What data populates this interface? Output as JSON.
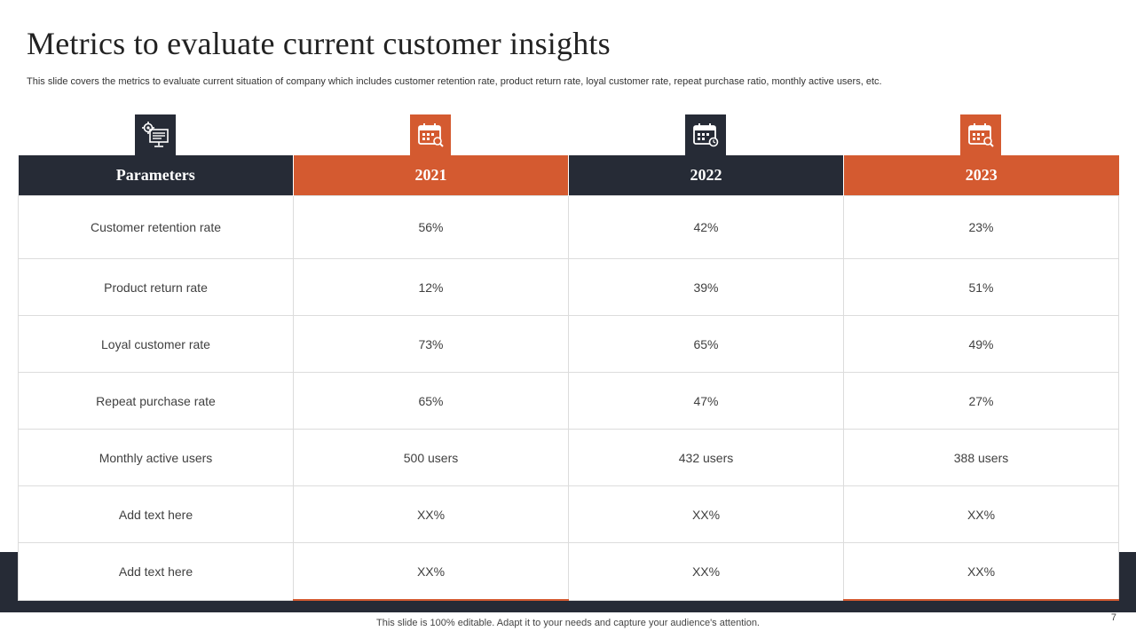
{
  "slide": {
    "title": "Metrics to evaluate current customer insights",
    "subtitle": "This slide covers the metrics to evaluate current situation of company which includes customer retention rate, product return rate, loyal customer rate, repeat purchase ratio, monthly active users, etc.",
    "footer_note": "This slide is 100% editable. Adapt it to your needs and capture your audience's attention.",
    "page_number": "7"
  },
  "colors": {
    "dark": "#262b36",
    "accent": "#d45a30"
  },
  "icons": [
    "monitor-settings-icon",
    "calendar-search-icon",
    "calendar-clock-icon",
    "calendar-search-icon"
  ],
  "table": {
    "headers": [
      "Parameters",
      "2021",
      "2022",
      "2023"
    ],
    "rows": [
      [
        "Customer retention rate",
        "56%",
        "42%",
        "23%"
      ],
      [
        "Product return rate",
        "12%",
        "39%",
        "51%"
      ],
      [
        "Loyal customer rate",
        "73%",
        "65%",
        "49%"
      ],
      [
        "Repeat purchase rate",
        "65%",
        "47%",
        "27%"
      ],
      [
        "Monthly active users",
        "500 users",
        "432 users",
        "388 users"
      ],
      [
        "Add text here",
        "XX%",
        "XX%",
        "XX%"
      ],
      [
        "Add text here",
        "XX%",
        "XX%",
        "XX%"
      ]
    ]
  }
}
